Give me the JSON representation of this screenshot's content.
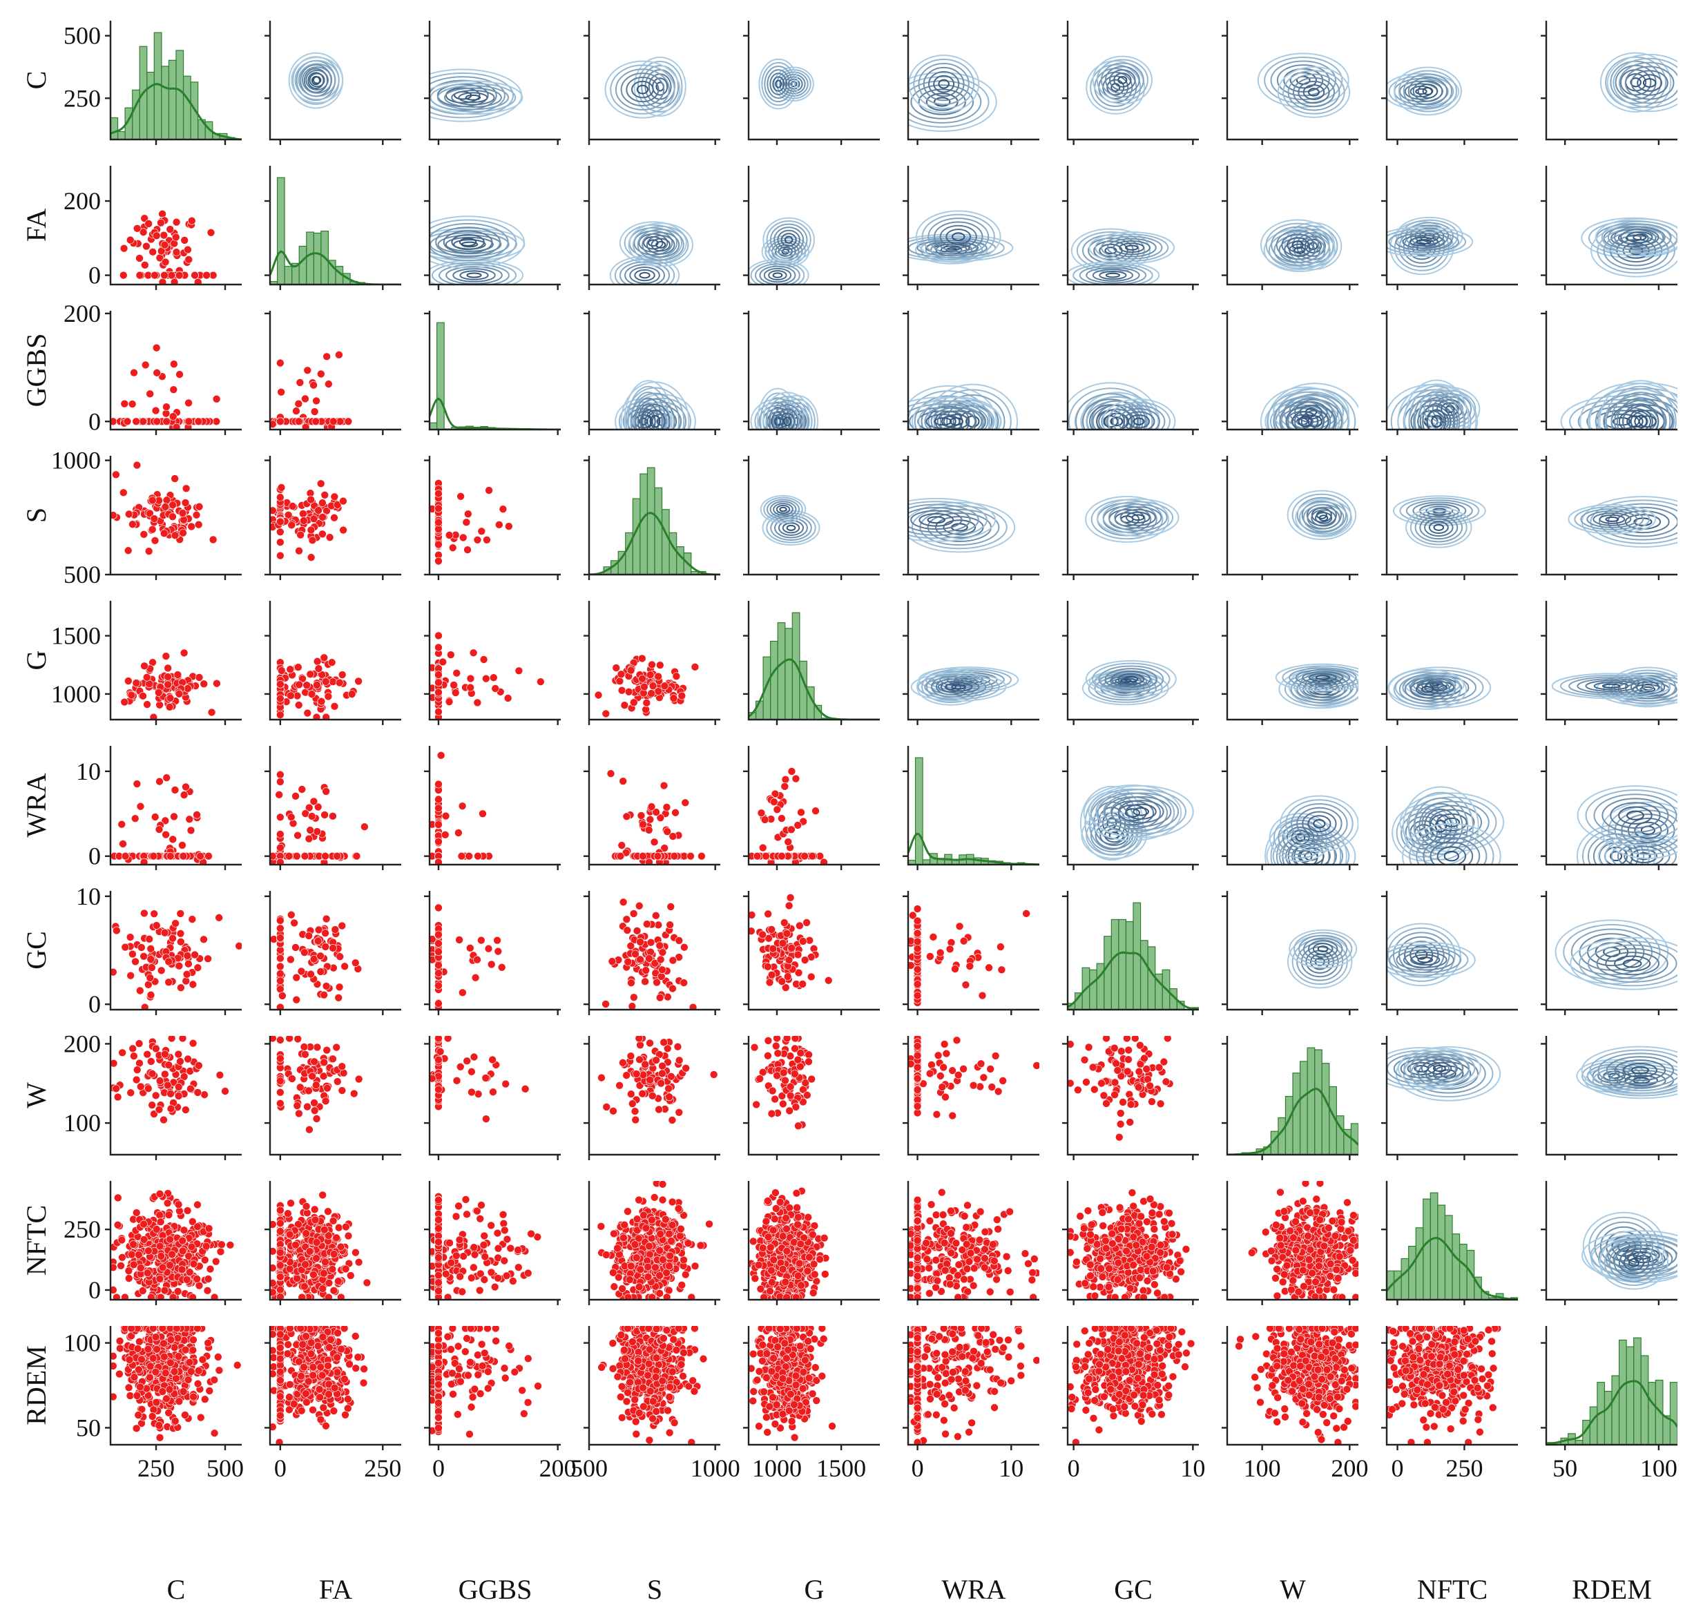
{
  "chart_data": {
    "type": "pairplot",
    "variables": [
      "C",
      "FA",
      "GGBS",
      "S",
      "G",
      "WRA",
      "GC",
      "W",
      "NFTC",
      "RDEM"
    ],
    "colors": {
      "scatter": "#ee1c1c",
      "hist": "#4a9e4a",
      "kde_low": "#a9cbe3",
      "kde_high": "#1b3f66"
    },
    "lower_triangle": "scatter",
    "upper_triangle": "kde_contours",
    "diagonal": "histogram_with_kde",
    "vars": {
      "C": {
        "range": [
          85,
          560
        ],
        "ticks": [
          250,
          500
        ],
        "xtick_labels": [
          "250",
          "500"
        ],
        "ytick_labels": [
          "250",
          "500"
        ],
        "center": 280,
        "spread": 80,
        "zero_frac": 0
      },
      "FA": {
        "range": [
          -25,
          295
        ],
        "ticks": [
          0,
          250
        ],
        "xtick_labels": [
          "0",
          "250"
        ],
        "ytick_labels": [
          "0",
          "200"
        ],
        "yticks": [
          0,
          200
        ],
        "center": 80,
        "spread": 45,
        "zero_frac": 0.25
      },
      "GGBS": {
        "range": [
          -15,
          205
        ],
        "ticks": [
          0,
          200
        ],
        "xtick_labels": [
          "0",
          "200"
        ],
        "ytick_labels": [
          "0",
          "200"
        ],
        "center": 40,
        "spread": 50,
        "zero_frac": 0.75
      },
      "S": {
        "range": [
          500,
          1020
        ],
        "ticks": [
          500,
          1000
        ],
        "xtick_labels": [
          "500",
          "1000"
        ],
        "ytick_labels": [
          "500",
          "1000"
        ],
        "center": 745,
        "spread": 70,
        "zero_frac": 0
      },
      "G": {
        "range": [
          780,
          1800
        ],
        "ticks": [
          1000,
          1500
        ],
        "xtick_labels": [
          "1000",
          "1500"
        ],
        "ytick_labels": [
          "1000",
          "1500"
        ],
        "center": 1080,
        "spread": 110,
        "zero_frac": 0
      },
      "WRA": {
        "range": [
          -1,
          13
        ],
        "ticks": [
          0,
          10
        ],
        "xtick_labels": [
          "0",
          "10"
        ],
        "ytick_labels": [
          "0",
          "10"
        ],
        "center": 4,
        "spread": 3,
        "zero_frac": 0.55
      },
      "GC": {
        "range": [
          -0.5,
          10.5
        ],
        "ticks": [
          0,
          10
        ],
        "xtick_labels": [
          "0",
          "10"
        ],
        "ytick_labels": [
          "0",
          "10"
        ],
        "center": 4.5,
        "spread": 2,
        "zero_frac": 0
      },
      "W": {
        "range": [
          60,
          210
        ],
        "ticks": [
          100,
          200
        ],
        "xtick_labels": [
          "100",
          "200"
        ],
        "ytick_labels": [
          "100",
          "200"
        ],
        "center": 158,
        "spread": 25,
        "zero_frac": 0
      },
      "NFTC": {
        "range": [
          -40,
          450
        ],
        "ticks": [
          0,
          250
        ],
        "xtick_labels": [
          "0",
          "250"
        ],
        "ytick_labels": [
          "0",
          "250"
        ],
        "center": 150,
        "spread": 90,
        "zero_frac": 0
      },
      "RDEM": {
        "range": [
          40,
          110
        ],
        "ticks": [
          50,
          100
        ],
        "xtick_labels": [
          "50",
          "100"
        ],
        "ytick_labels": [
          "50",
          "100"
        ],
        "center": 85,
        "spread": 15,
        "zero_frac": 0
      }
    }
  }
}
